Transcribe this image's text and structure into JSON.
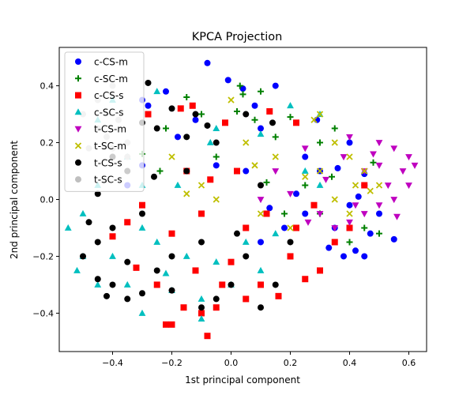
{
  "chart_data": {
    "type": "scatter",
    "title": "KPCA Projection",
    "xlabel": "1st principal component",
    "ylabel": "2nd principal component",
    "xlim": [
      -0.58,
      0.66
    ],
    "ylim": [
      -0.535,
      0.535
    ],
    "xticks": [
      -0.4,
      -0.2,
      0.0,
      0.2,
      0.4,
      0.6
    ],
    "xtick_labels": [
      "−0.4",
      "−0.2",
      "0.0",
      "0.2",
      "0.4",
      "0.6"
    ],
    "yticks": [
      -0.4,
      -0.2,
      0.0,
      0.2,
      0.4
    ],
    "ytick_labels": [
      "−0.4",
      "−0.2",
      "0.0",
      "0.2",
      "0.4"
    ],
    "grid": false,
    "legend_position": "upper-left",
    "series": [
      {
        "name": "c-CS-m",
        "marker": "circle",
        "color": "#0000ff",
        "points": [
          [
            -0.08,
            0.48
          ],
          [
            -0.01,
            0.42
          ],
          [
            0.15,
            0.4
          ],
          [
            0.04,
            0.39
          ],
          [
            -0.22,
            0.38
          ],
          [
            -0.3,
            0.35
          ],
          [
            -0.28,
            0.33
          ],
          [
            -0.12,
            0.28
          ],
          [
            0.1,
            0.25
          ],
          [
            -0.18,
            0.22
          ],
          [
            0.25,
            0.15
          ],
          [
            0.4,
            0.2
          ],
          [
            0.3,
            0.1
          ],
          [
            0.45,
            0.05
          ],
          [
            0.4,
            -0.02
          ],
          [
            0.25,
            -0.05
          ],
          [
            0.35,
            -0.1
          ],
          [
            0.47,
            -0.12
          ],
          [
            0.5,
            -0.05
          ],
          [
            0.42,
            -0.18
          ],
          [
            0.38,
            -0.2
          ],
          [
            0.45,
            -0.2
          ],
          [
            0.1,
            -0.15
          ],
          [
            -0.3,
            0.12
          ],
          [
            -0.35,
            0.05
          ],
          [
            0.22,
            0.02
          ],
          [
            0.36,
            0.11
          ],
          [
            0.05,
            0.1
          ],
          [
            0.45,
            0.09
          ],
          [
            0.43,
            0.01
          ],
          [
            0.18,
            -0.1
          ],
          [
            0.33,
            -0.17
          ],
          [
            0.2,
            -0.2
          ],
          [
            0.13,
            -0.03
          ],
          [
            -0.05,
            0.12
          ],
          [
            0.08,
            0.33
          ],
          [
            0.29,
            0.28
          ],
          [
            0.55,
            -0.14
          ]
        ]
      },
      {
        "name": "c-SC-m",
        "marker": "plus",
        "color": "#008000",
        "points": [
          [
            0.03,
            0.4
          ],
          [
            0.04,
            0.37
          ],
          [
            0.1,
            0.38
          ],
          [
            -0.15,
            0.36
          ],
          [
            -0.22,
            0.25
          ],
          [
            -0.1,
            0.3
          ],
          [
            0.08,
            0.28
          ],
          [
            0.35,
            0.25
          ],
          [
            0.3,
            0.2
          ],
          [
            0.15,
            0.22
          ],
          [
            -0.05,
            0.15
          ],
          [
            0.25,
            0.05
          ],
          [
            0.45,
            -0.1
          ],
          [
            0.5,
            -0.12
          ],
          [
            0.4,
            -0.15
          ],
          [
            0.3,
            -0.05
          ],
          [
            0.18,
            -0.05
          ],
          [
            -0.3,
            0.16
          ],
          [
            0.02,
            0.31
          ],
          [
            0.2,
            0.29
          ],
          [
            -0.24,
            0.1
          ],
          [
            0.12,
            0.06
          ],
          [
            0.34,
            0.08
          ],
          [
            0.48,
            0.13
          ]
        ]
      },
      {
        "name": "c-CS-s",
        "marker": "square",
        "color": "#ff0000",
        "points": [
          [
            -0.17,
            0.32
          ],
          [
            -0.13,
            0.33
          ],
          [
            0.13,
            0.31
          ],
          [
            0.22,
            0.27
          ],
          [
            -0.28,
            0.3
          ],
          [
            -0.02,
            0.27
          ],
          [
            -0.15,
            0.1
          ],
          [
            0.02,
            0.1
          ],
          [
            -0.3,
            -0.02
          ],
          [
            -0.35,
            -0.08
          ],
          [
            -0.2,
            -0.12
          ],
          [
            -0.1,
            -0.05
          ],
          [
            0.05,
            -0.1
          ],
          [
            0.2,
            -0.2
          ],
          [
            0.1,
            -0.3
          ],
          [
            0.05,
            -0.35
          ],
          [
            -0.05,
            -0.38
          ],
          [
            -0.1,
            -0.4
          ],
          [
            -0.2,
            -0.44
          ],
          [
            -0.22,
            -0.44
          ],
          [
            -0.08,
            -0.48
          ],
          [
            0.25,
            -0.28
          ],
          [
            0.3,
            -0.25
          ],
          [
            0.35,
            -0.15
          ],
          [
            0.4,
            -0.1
          ],
          [
            0.45,
            0.05
          ],
          [
            0.12,
            -0.05
          ],
          [
            -0.25,
            -0.3
          ],
          [
            -0.16,
            -0.38
          ],
          [
            -0.32,
            -0.24
          ],
          [
            0.16,
            -0.34
          ],
          [
            0.0,
            -0.22
          ],
          [
            -0.03,
            -0.3
          ],
          [
            0.22,
            -0.1
          ],
          [
            -0.4,
            -0.13
          ],
          [
            -0.12,
            -0.25
          ],
          [
            0.28,
            -0.02
          ],
          [
            -0.07,
            0.07
          ]
        ]
      },
      {
        "name": "c-SC-s",
        "marker": "triangle-up",
        "color": "#00bfbf",
        "points": [
          [
            -0.25,
            0.38
          ],
          [
            -0.4,
            0.35
          ],
          [
            -0.45,
            0.28
          ],
          [
            0.2,
            0.33
          ],
          [
            0.3,
            0.3
          ],
          [
            -0.05,
            0.25
          ],
          [
            0.1,
            0.23
          ],
          [
            -0.3,
            0.05
          ],
          [
            -0.45,
            0.05
          ],
          [
            -0.5,
            -0.05
          ],
          [
            -0.55,
            -0.1
          ],
          [
            -0.5,
            -0.2
          ],
          [
            -0.45,
            -0.3
          ],
          [
            -0.35,
            -0.3
          ],
          [
            -0.3,
            -0.4
          ],
          [
            -0.2,
            -0.32
          ],
          [
            -0.1,
            -0.35
          ],
          [
            0.0,
            -0.3
          ],
          [
            0.1,
            -0.25
          ],
          [
            -0.15,
            -0.2
          ],
          [
            -0.25,
            -0.15
          ],
          [
            0.25,
            0.1
          ],
          [
            0.3,
            0.05
          ],
          [
            -0.4,
            -0.2
          ],
          [
            -0.1,
            -0.42
          ],
          [
            -0.3,
            -0.1
          ],
          [
            0.05,
            -0.15
          ],
          [
            -0.18,
            0.05
          ],
          [
            -0.35,
            0.15
          ],
          [
            -0.52,
            -0.25
          ],
          [
            -0.05,
            -0.22
          ],
          [
            0.15,
            -0.12
          ],
          [
            -0.22,
            -0.26
          ],
          [
            -0.07,
            0.2
          ]
        ]
      },
      {
        "name": "t-CS-m",
        "marker": "triangle-down",
        "color": "#bf00bf",
        "points": [
          [
            0.4,
            0.22
          ],
          [
            0.5,
            0.2
          ],
          [
            0.55,
            0.18
          ],
          [
            0.6,
            0.15
          ],
          [
            0.58,
            0.1
          ],
          [
            0.53,
            0.05
          ],
          [
            0.55,
            0.0
          ],
          [
            0.5,
            -0.02
          ],
          [
            0.45,
            -0.05
          ],
          [
            0.4,
            -0.08
          ],
          [
            0.35,
            -0.1
          ],
          [
            0.3,
            -0.05
          ],
          [
            0.2,
            0.02
          ],
          [
            0.1,
            0.0
          ],
          [
            0.45,
            0.1
          ],
          [
            0.38,
            0.15
          ],
          [
            0.25,
            0.18
          ],
          [
            0.5,
            0.12
          ],
          [
            0.6,
            0.05
          ],
          [
            0.42,
            -0.02
          ],
          [
            0.48,
            0.16
          ],
          [
            0.32,
            0.07
          ],
          [
            0.56,
            -0.06
          ],
          [
            0.26,
            -0.08
          ],
          [
            0.15,
            0.1
          ],
          [
            0.62,
            0.12
          ]
        ]
      },
      {
        "name": "t-SC-m",
        "marker": "x",
        "color": "#bfbf00",
        "points": [
          [
            0.3,
            0.3
          ],
          [
            0.28,
            0.28
          ],
          [
            0.35,
            0.2
          ],
          [
            0.4,
            0.15
          ],
          [
            0.45,
            0.1
          ],
          [
            0.5,
            0.05
          ],
          [
            0.42,
            0.05
          ],
          [
            0.3,
            0.1
          ],
          [
            0.15,
            0.15
          ],
          [
            0.05,
            0.2
          ],
          [
            -0.1,
            0.05
          ],
          [
            -0.05,
            0.0
          ],
          [
            0.1,
            -0.05
          ],
          [
            0.2,
            -0.1
          ],
          [
            0.35,
            0.0
          ],
          [
            0.25,
            0.08
          ],
          [
            -0.2,
            0.15
          ],
          [
            0.0,
            0.35
          ],
          [
            0.4,
            -0.05
          ],
          [
            0.47,
            0.03
          ],
          [
            0.08,
            0.12
          ],
          [
            -0.15,
            0.02
          ]
        ]
      },
      {
        "name": "t-CS-s",
        "marker": "circle",
        "color": "#000000",
        "points": [
          [
            -0.28,
            0.41
          ],
          [
            -0.2,
            0.32
          ],
          [
            -0.12,
            0.3
          ],
          [
            0.05,
            0.3
          ],
          [
            -0.3,
            0.27
          ],
          [
            -0.25,
            0.25
          ],
          [
            -0.15,
            0.22
          ],
          [
            -0.05,
            0.2
          ],
          [
            -0.4,
            0.15
          ],
          [
            -0.35,
            0.1
          ],
          [
            -0.45,
            0.02
          ],
          [
            -0.3,
            -0.05
          ],
          [
            -0.4,
            -0.1
          ],
          [
            -0.45,
            -0.15
          ],
          [
            -0.5,
            -0.2
          ],
          [
            -0.45,
            -0.28
          ],
          [
            -0.4,
            -0.3
          ],
          [
            -0.35,
            -0.35
          ],
          [
            -0.3,
            -0.33
          ],
          [
            -0.25,
            -0.25
          ],
          [
            -0.2,
            -0.2
          ],
          [
            -0.1,
            -0.15
          ],
          [
            0.05,
            -0.2
          ],
          [
            0.0,
            -0.3
          ],
          [
            -0.05,
            -0.35
          ],
          [
            -0.1,
            -0.38
          ],
          [
            0.1,
            -0.38
          ],
          [
            0.15,
            -0.3
          ],
          [
            0.2,
            -0.15
          ],
          [
            -0.15,
            0.1
          ],
          [
            0.1,
            0.05
          ],
          [
            -0.2,
            -0.32
          ],
          [
            -0.35,
            -0.22
          ],
          [
            -0.08,
            0.26
          ],
          [
            0.14,
            0.27
          ],
          [
            -0.48,
            -0.08
          ],
          [
            -0.26,
            0.08
          ],
          [
            0.02,
            -0.12
          ],
          [
            -0.42,
            -0.34
          ]
        ]
      },
      {
        "name": "t-SC-s",
        "marker": "circle",
        "color": "#bfbfbf",
        "points": [
          [
            -0.4,
            0.4
          ],
          [
            -0.45,
            0.35
          ],
          [
            -0.5,
            0.3
          ],
          [
            -0.35,
            0.2
          ],
          [
            -0.4,
            0.18
          ],
          [
            -0.35,
            0.15
          ],
          [
            -0.45,
            0.25
          ],
          [
            -0.48,
            0.18
          ],
          [
            -0.38,
            0.28
          ],
          [
            -0.42,
            0.22
          ]
        ]
      }
    ]
  }
}
